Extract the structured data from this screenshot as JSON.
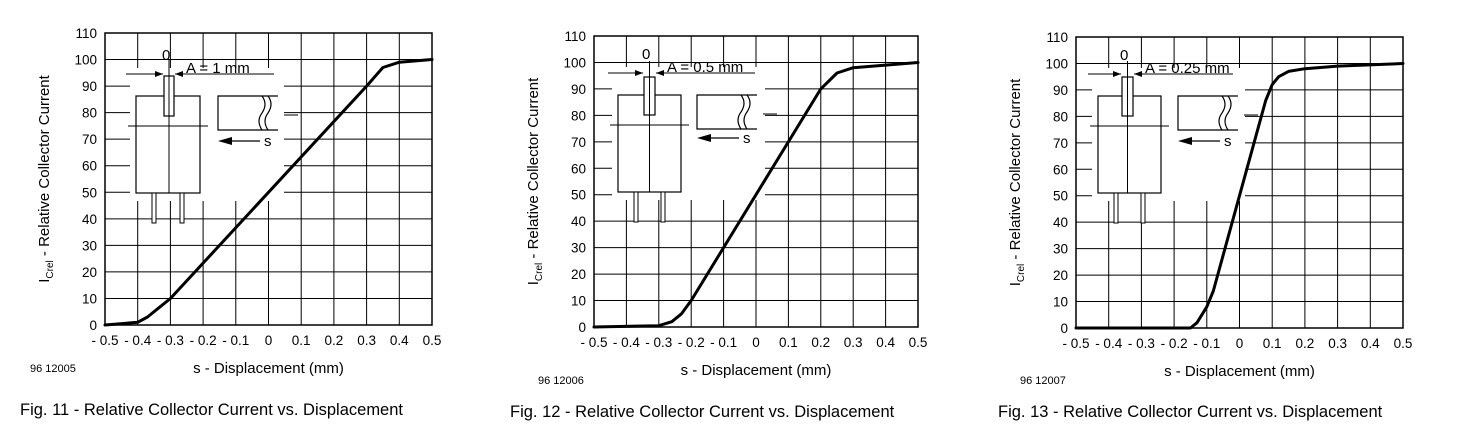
{
  "figures": [
    {
      "fig_id": "96 12005",
      "caption": "Fig. 11 - Relative Collector Current vs. Displacement",
      "aperture_label": "A = 1 mm",
      "zero_label": "0",
      "s_label": "s"
    },
    {
      "fig_id": "96 12006",
      "caption": "Fig. 12 - Relative Collector Current vs. Displacement",
      "aperture_label": "A = 0.5 mm",
      "zero_label": "0",
      "s_label": "s"
    },
    {
      "fig_id": "96 12007",
      "caption": "Fig. 13 - Relative Collector Current vs. Displacement",
      "aperture_label": "A = 0.25 mm",
      "zero_label": "0",
      "s_label": "s"
    }
  ],
  "chart_data": [
    {
      "type": "line",
      "title": "",
      "xlabel": "s - Displacement (mm)",
      "ylabel_main": "I",
      "ylabel_sub": "Crel",
      "ylabel_rest": " - Relative Collector Current",
      "xlim": [
        -0.5,
        0.5
      ],
      "ylim": [
        0,
        110
      ],
      "grid": true,
      "x_ticks": [
        "- 0.5",
        "- 0.4",
        "- 0.3",
        "- 0.2",
        "- 0.1",
        "0",
        "0.1",
        "0.2",
        "0.3",
        "0.4",
        "0.5"
      ],
      "y_ticks": [
        "0",
        "10",
        "20",
        "30",
        "40",
        "50",
        "60",
        "70",
        "80",
        "90",
        "100",
        "110"
      ],
      "series": [
        {
          "x": [
            -0.5,
            -0.4,
            -0.37,
            -0.34,
            -0.3,
            0.0,
            0.3,
            0.35,
            0.4,
            0.5
          ],
          "y": [
            0,
            1,
            3,
            6,
            10,
            50,
            90,
            97,
            99,
            100
          ]
        }
      ]
    },
    {
      "type": "line",
      "title": "",
      "xlabel": "s - Displacement (mm)",
      "ylabel_main": "I",
      "ylabel_sub": "Crel",
      "ylabel_rest": " - Relative Collector Current",
      "xlim": [
        -0.5,
        0.5
      ],
      "ylim": [
        0,
        110
      ],
      "grid": true,
      "x_ticks": [
        "- 0.5",
        "- 0.4",
        "- 0.3",
        "- 0.2",
        "- 0.1",
        "0",
        "0.1",
        "0.2",
        "0.3",
        "0.4",
        "0.5"
      ],
      "y_ticks": [
        "0",
        "10",
        "20",
        "30",
        "40",
        "50",
        "60",
        "70",
        "80",
        "90",
        "100",
        "110"
      ],
      "series": [
        {
          "x": [
            -0.5,
            -0.3,
            -0.26,
            -0.23,
            -0.2,
            0.0,
            0.2,
            0.25,
            0.3,
            0.4,
            0.5
          ],
          "y": [
            0,
            0.5,
            2,
            5,
            10,
            50,
            90,
            96,
            98,
            99,
            100
          ]
        }
      ]
    },
    {
      "type": "line",
      "title": "",
      "xlabel": "s - Displacement (mm)",
      "ylabel_main": "I",
      "ylabel_sub": "Crel",
      "ylabel_rest": " - Relative Collector Current",
      "xlim": [
        -0.5,
        0.5
      ],
      "ylim": [
        0,
        110
      ],
      "grid": true,
      "x_ticks": [
        "- 0.5",
        "- 0.4",
        "- 0.3",
        "- 0.2",
        "- 0.1",
        "0",
        "0.1",
        "0.2",
        "0.3",
        "0.4",
        "0.5"
      ],
      "y_ticks": [
        "0",
        "10",
        "20",
        "30",
        "40",
        "50",
        "60",
        "70",
        "80",
        "90",
        "100",
        "110"
      ],
      "series": [
        {
          "x": [
            -0.5,
            -0.15,
            -0.13,
            -0.1,
            -0.08,
            0.0,
            0.08,
            0.1,
            0.12,
            0.15,
            0.2,
            0.3,
            0.5
          ],
          "y": [
            0,
            0,
            2,
            8,
            14,
            50,
            86,
            92,
            95,
            97,
            98,
            99,
            100
          ]
        }
      ]
    }
  ]
}
